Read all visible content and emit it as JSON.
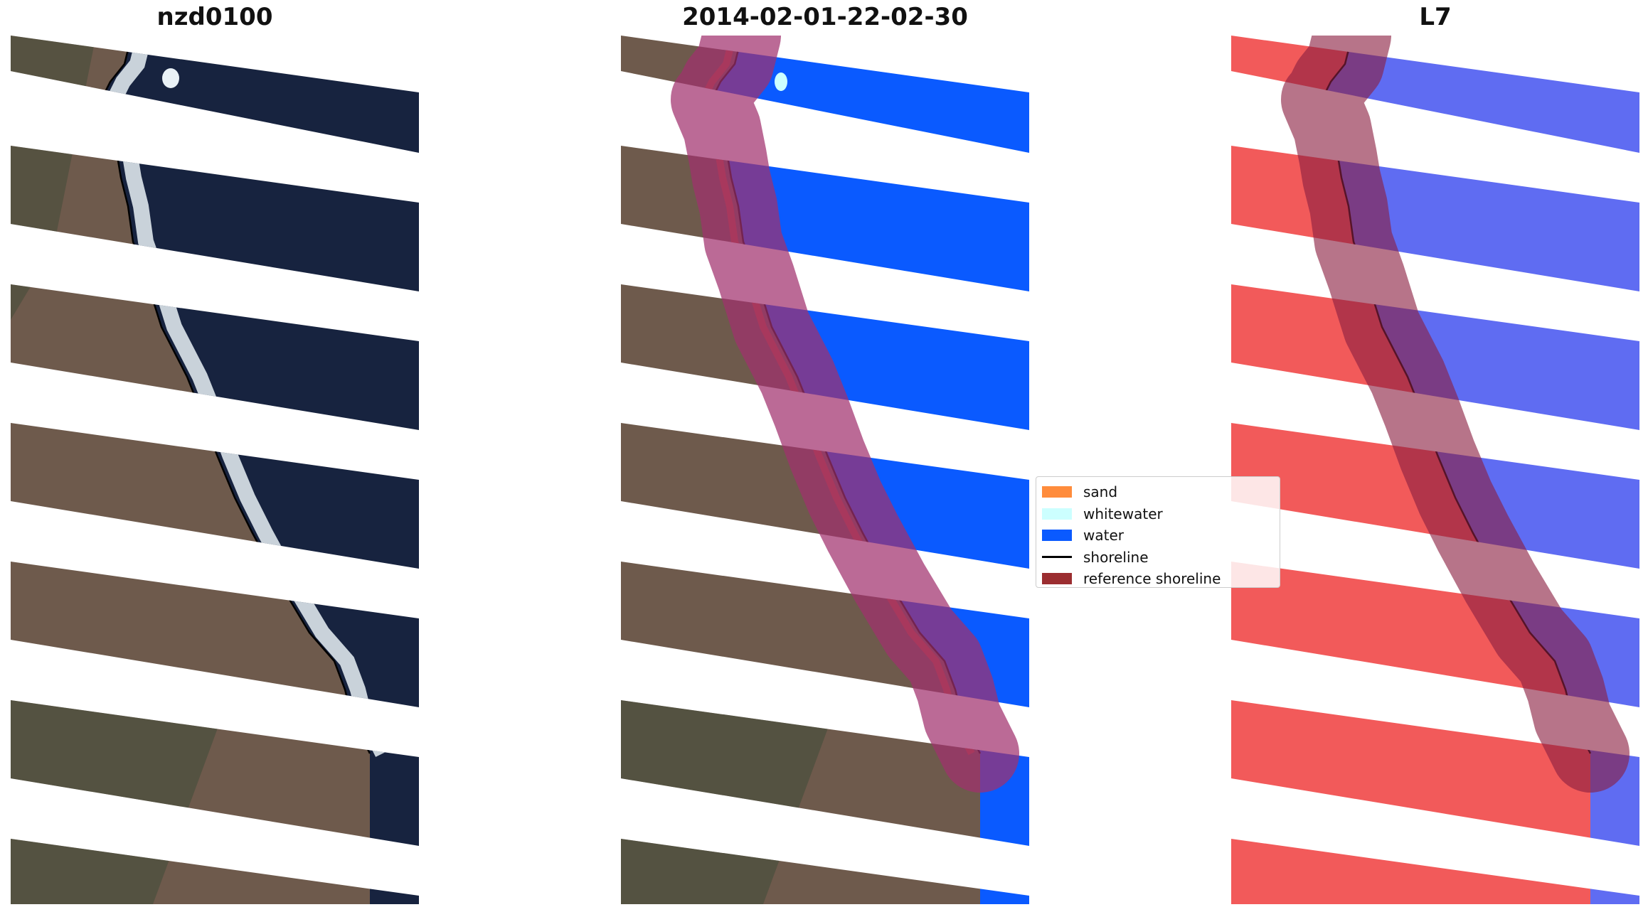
{
  "panels": [
    {
      "id": "rgb",
      "title": "nzd0100"
    },
    {
      "id": "classified",
      "title": "2014-02-01-22-02-30"
    },
    {
      "id": "index",
      "title": "L7"
    }
  ],
  "legend": {
    "items": [
      {
        "label": "sand",
        "kind": "patch",
        "color": "#ff8c3c"
      },
      {
        "label": "whitewater",
        "kind": "patch",
        "color": "#ccffff"
      },
      {
        "label": "water",
        "kind": "patch",
        "color": "#0a5aff"
      },
      {
        "label": "shoreline",
        "kind": "line",
        "color": "#000000"
      },
      {
        "label": "reference shoreline",
        "kind": "patch",
        "color": "#9b2d30"
      }
    ]
  },
  "colors": {
    "ocean_dark": "#17233f",
    "land_brown": "#6e5a4c",
    "land_green": "#3a4a35",
    "foam": "#e9f1f6",
    "water_class": "#0a5aff",
    "buffer": "#a1306e",
    "index_land": "#f25a5a",
    "index_water": "#5f6cf2"
  }
}
